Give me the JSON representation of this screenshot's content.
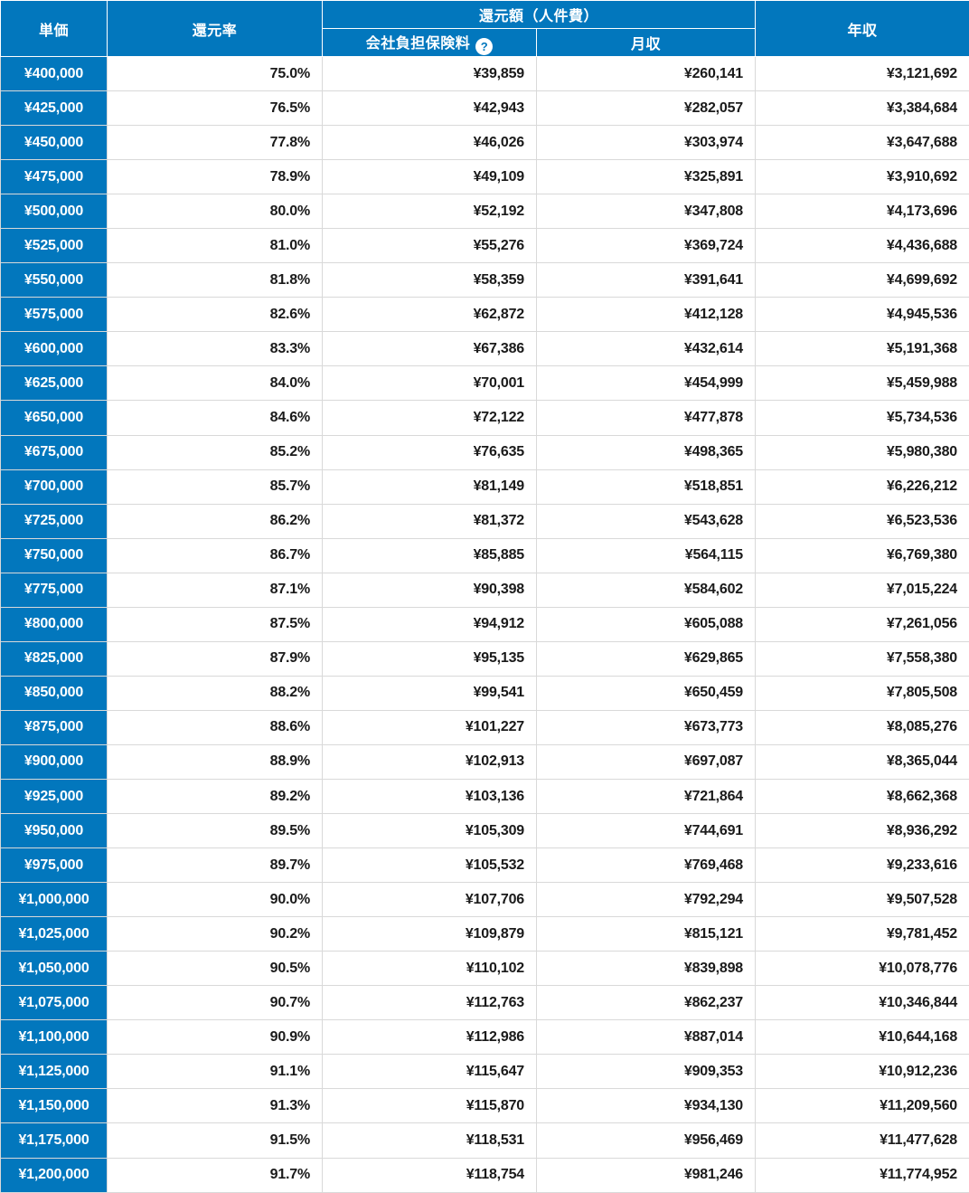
{
  "colors": {
    "header_blue": "#0277BD",
    "grid_line": "#d9d9d9",
    "body_text": "#1a1a1a",
    "header_text": "#ffffff"
  },
  "table": {
    "header": {
      "unit_price": "単価",
      "return_rate": "還元率",
      "return_amount_group": "還元額（人件費）",
      "company_insurance": "会社負担保険料",
      "help_icon": "?",
      "monthly_income": "月収",
      "annual_income": "年収"
    },
    "rows": [
      [
        "¥400,000",
        "75.0%",
        "¥39,859",
        "¥260,141",
        "¥3,121,692"
      ],
      [
        "¥425,000",
        "76.5%",
        "¥42,943",
        "¥282,057",
        "¥3,384,684"
      ],
      [
        "¥450,000",
        "77.8%",
        "¥46,026",
        "¥303,974",
        "¥3,647,688"
      ],
      [
        "¥475,000",
        "78.9%",
        "¥49,109",
        "¥325,891",
        "¥3,910,692"
      ],
      [
        "¥500,000",
        "80.0%",
        "¥52,192",
        "¥347,808",
        "¥4,173,696"
      ],
      [
        "¥525,000",
        "81.0%",
        "¥55,276",
        "¥369,724",
        "¥4,436,688"
      ],
      [
        "¥550,000",
        "81.8%",
        "¥58,359",
        "¥391,641",
        "¥4,699,692"
      ],
      [
        "¥575,000",
        "82.6%",
        "¥62,872",
        "¥412,128",
        "¥4,945,536"
      ],
      [
        "¥600,000",
        "83.3%",
        "¥67,386",
        "¥432,614",
        "¥5,191,368"
      ],
      [
        "¥625,000",
        "84.0%",
        "¥70,001",
        "¥454,999",
        "¥5,459,988"
      ],
      [
        "¥650,000",
        "84.6%",
        "¥72,122",
        "¥477,878",
        "¥5,734,536"
      ],
      [
        "¥675,000",
        "85.2%",
        "¥76,635",
        "¥498,365",
        "¥5,980,380"
      ],
      [
        "¥700,000",
        "85.7%",
        "¥81,149",
        "¥518,851",
        "¥6,226,212"
      ],
      [
        "¥725,000",
        "86.2%",
        "¥81,372",
        "¥543,628",
        "¥6,523,536"
      ],
      [
        "¥750,000",
        "86.7%",
        "¥85,885",
        "¥564,115",
        "¥6,769,380"
      ],
      [
        "¥775,000",
        "87.1%",
        "¥90,398",
        "¥584,602",
        "¥7,015,224"
      ],
      [
        "¥800,000",
        "87.5%",
        "¥94,912",
        "¥605,088",
        "¥7,261,056"
      ],
      [
        "¥825,000",
        "87.9%",
        "¥95,135",
        "¥629,865",
        "¥7,558,380"
      ],
      [
        "¥850,000",
        "88.2%",
        "¥99,541",
        "¥650,459",
        "¥7,805,508"
      ],
      [
        "¥875,000",
        "88.6%",
        "¥101,227",
        "¥673,773",
        "¥8,085,276"
      ],
      [
        "¥900,000",
        "88.9%",
        "¥102,913",
        "¥697,087",
        "¥8,365,044"
      ],
      [
        "¥925,000",
        "89.2%",
        "¥103,136",
        "¥721,864",
        "¥8,662,368"
      ],
      [
        "¥950,000",
        "89.5%",
        "¥105,309",
        "¥744,691",
        "¥8,936,292"
      ],
      [
        "¥975,000",
        "89.7%",
        "¥105,532",
        "¥769,468",
        "¥9,233,616"
      ],
      [
        "¥1,000,000",
        "90.0%",
        "¥107,706",
        "¥792,294",
        "¥9,507,528"
      ],
      [
        "¥1,025,000",
        "90.2%",
        "¥109,879",
        "¥815,121",
        "¥9,781,452"
      ],
      [
        "¥1,050,000",
        "90.5%",
        "¥110,102",
        "¥839,898",
        "¥10,078,776"
      ],
      [
        "¥1,075,000",
        "90.7%",
        "¥112,763",
        "¥862,237",
        "¥10,346,844"
      ],
      [
        "¥1,100,000",
        "90.9%",
        "¥112,986",
        "¥887,014",
        "¥10,644,168"
      ],
      [
        "¥1,125,000",
        "91.1%",
        "¥115,647",
        "¥909,353",
        "¥10,912,236"
      ],
      [
        "¥1,150,000",
        "91.3%",
        "¥115,870",
        "¥934,130",
        "¥11,209,560"
      ],
      [
        "¥1,175,000",
        "91.5%",
        "¥118,531",
        "¥956,469",
        "¥11,477,628"
      ],
      [
        "¥1,200,000",
        "91.7%",
        "¥118,754",
        "¥981,246",
        "¥11,774,952"
      ]
    ]
  }
}
